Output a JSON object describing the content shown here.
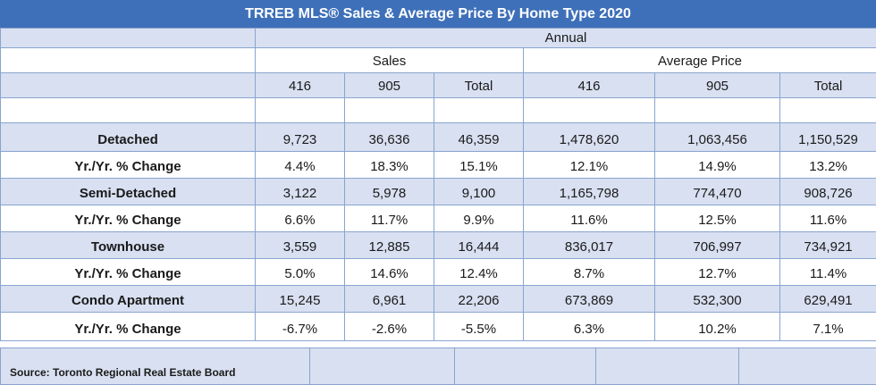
{
  "title": "TRREB MLS® Sales & Average Price By Home Type 2020",
  "period_header": "Annual",
  "group_headers": {
    "sales": "Sales",
    "avg_price": "Average Price"
  },
  "columns": [
    "416",
    "905",
    "Total",
    "416",
    "905",
    "Total"
  ],
  "rows": [
    {
      "type": "Detached",
      "values": [
        "9,723",
        "36,636",
        "46,359",
        "1,478,620",
        "1,063,456",
        "1,150,529"
      ],
      "change_label": "Yr./Yr. % Change",
      "change": [
        "4.4%",
        "18.3%",
        "15.1%",
        "12.1%",
        "14.9%",
        "13.2%"
      ]
    },
    {
      "type": "Semi-Detached",
      "values": [
        "3,122",
        "5,978",
        "9,100",
        "1,165,798",
        "774,470",
        "908,726"
      ],
      "change_label": "Yr./Yr. % Change",
      "change": [
        "6.6%",
        "11.7%",
        "9.9%",
        "11.6%",
        "12.5%",
        "11.6%"
      ]
    },
    {
      "type": "Townhouse",
      "values": [
        "3,559",
        "12,885",
        "16,444",
        "836,017",
        "706,997",
        "734,921"
      ],
      "change_label": "Yr./Yr. % Change",
      "change": [
        "5.0%",
        "14.6%",
        "12.4%",
        "8.7%",
        "12.7%",
        "11.4%"
      ]
    },
    {
      "type": "Condo Apartment",
      "values": [
        "15,245",
        "6,961",
        "22,206",
        "673,869",
        "532,300",
        "629,491"
      ],
      "change_label": "Yr./Yr. % Change",
      "change": [
        "-6.7%",
        "-2.6%",
        "-5.5%",
        "6.3%",
        "10.2%",
        "7.1%"
      ]
    }
  ],
  "source": "Source: Toronto Regional Real Estate Board",
  "colors": {
    "header_bg": "#3e70b9",
    "shade": "#d8e0f1",
    "border": "#8aa4cf"
  }
}
